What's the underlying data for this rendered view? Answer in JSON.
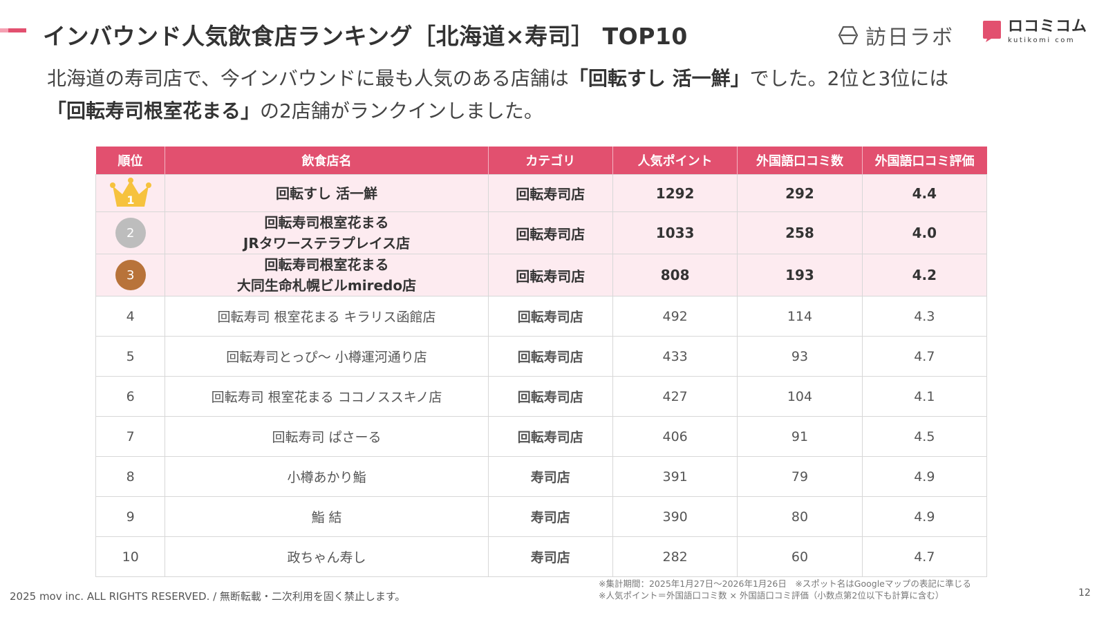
{
  "header": {
    "title": "インバウンド人気飲食店ランキング［北海道×寿司］ TOP10",
    "logo_hounichi": "訪日ラボ",
    "logo_kutikomi_jp": "ロコミコム",
    "logo_kutikomi_en": "kutikomi com"
  },
  "lead": {
    "part1": "北海道の寿司店で、今インバウンドに最も人気のある店舗は",
    "highlight1": "「回転すし 活一鮮」",
    "part2": "でした。2位と3位には",
    "highlight2": "「回転寿司根室花まる」",
    "part3": "の2店舗がランクインしました。"
  },
  "table": {
    "headers": [
      "順位",
      "飲食店名",
      "カテゴリ",
      "人気ポイント",
      "外国語口コミ数",
      "外国語口コミ評価"
    ],
    "top_rows": [
      {
        "rank": "1",
        "name1": "回転すし 活一鮮",
        "name2": "",
        "category": "回転寿司店",
        "points": "1292",
        "reviews": "292",
        "rating": "4.4"
      },
      {
        "rank": "2",
        "name1": "回転寿司根室花まる",
        "name2": "JRタワーステラプレイス店",
        "category": "回転寿司店",
        "points": "1033",
        "reviews": "258",
        "rating": "4.0"
      },
      {
        "rank": "3",
        "name1": "回転寿司根室花まる",
        "name2": "大同生命札幌ビルmiredo店",
        "category": "回転寿司店",
        "points": "808",
        "reviews": "193",
        "rating": "4.2"
      }
    ],
    "rows": [
      {
        "rank": "4",
        "name": "回転寿司 根室花まる キラリス函館店",
        "category": "回転寿司店",
        "points": "492",
        "reviews": "114",
        "rating": "4.3"
      },
      {
        "rank": "5",
        "name": "回転寿司とっぴ〜 小樽運河通り店",
        "category": "回転寿司店",
        "points": "433",
        "reviews": "93",
        "rating": "4.7"
      },
      {
        "rank": "6",
        "name": "回転寿司 根室花まる ココノススキノ店",
        "category": "回転寿司店",
        "points": "427",
        "reviews": "104",
        "rating": "4.1"
      },
      {
        "rank": "7",
        "name": "回転寿司 ぱさーる",
        "category": "回転寿司店",
        "points": "406",
        "reviews": "91",
        "rating": "4.5"
      },
      {
        "rank": "8",
        "name": "小樽あかり鮨",
        "category": "寿司店",
        "points": "391",
        "reviews": "79",
        "rating": "4.9"
      },
      {
        "rank": "9",
        "name": "鮨 結",
        "category": "寿司店",
        "points": "390",
        "reviews": "80",
        "rating": "4.9"
      },
      {
        "rank": "10",
        "name": "政ちゃん寿し",
        "category": "寿司店",
        "points": "282",
        "reviews": "60",
        "rating": "4.7"
      }
    ]
  },
  "footer": {
    "copyright": "2025 mov inc. ALL RIGHTS RESERVED. / 無断転載・二次利用を固く禁止します。",
    "note1": "※集計期間：2025年1月27日〜2026年1月26日　※スポット名はGoogleマップの表記に準じる",
    "note2": "※人気ポイント＝外国語口コミ数 × 外国語口コミ評価（小数点第2位以下も計算に含む）",
    "page_number": "12"
  },
  "colors": {
    "accent": "#e2506f",
    "row_highlight": "#fdebf0",
    "gold": "#f6c23e",
    "silver": "#bdbdbd",
    "bronze": "#b8733a"
  },
  "icons": {
    "rank1": "gold-crown-icon",
    "rank2": "silver-medal-icon",
    "rank3": "bronze-medal-icon"
  }
}
